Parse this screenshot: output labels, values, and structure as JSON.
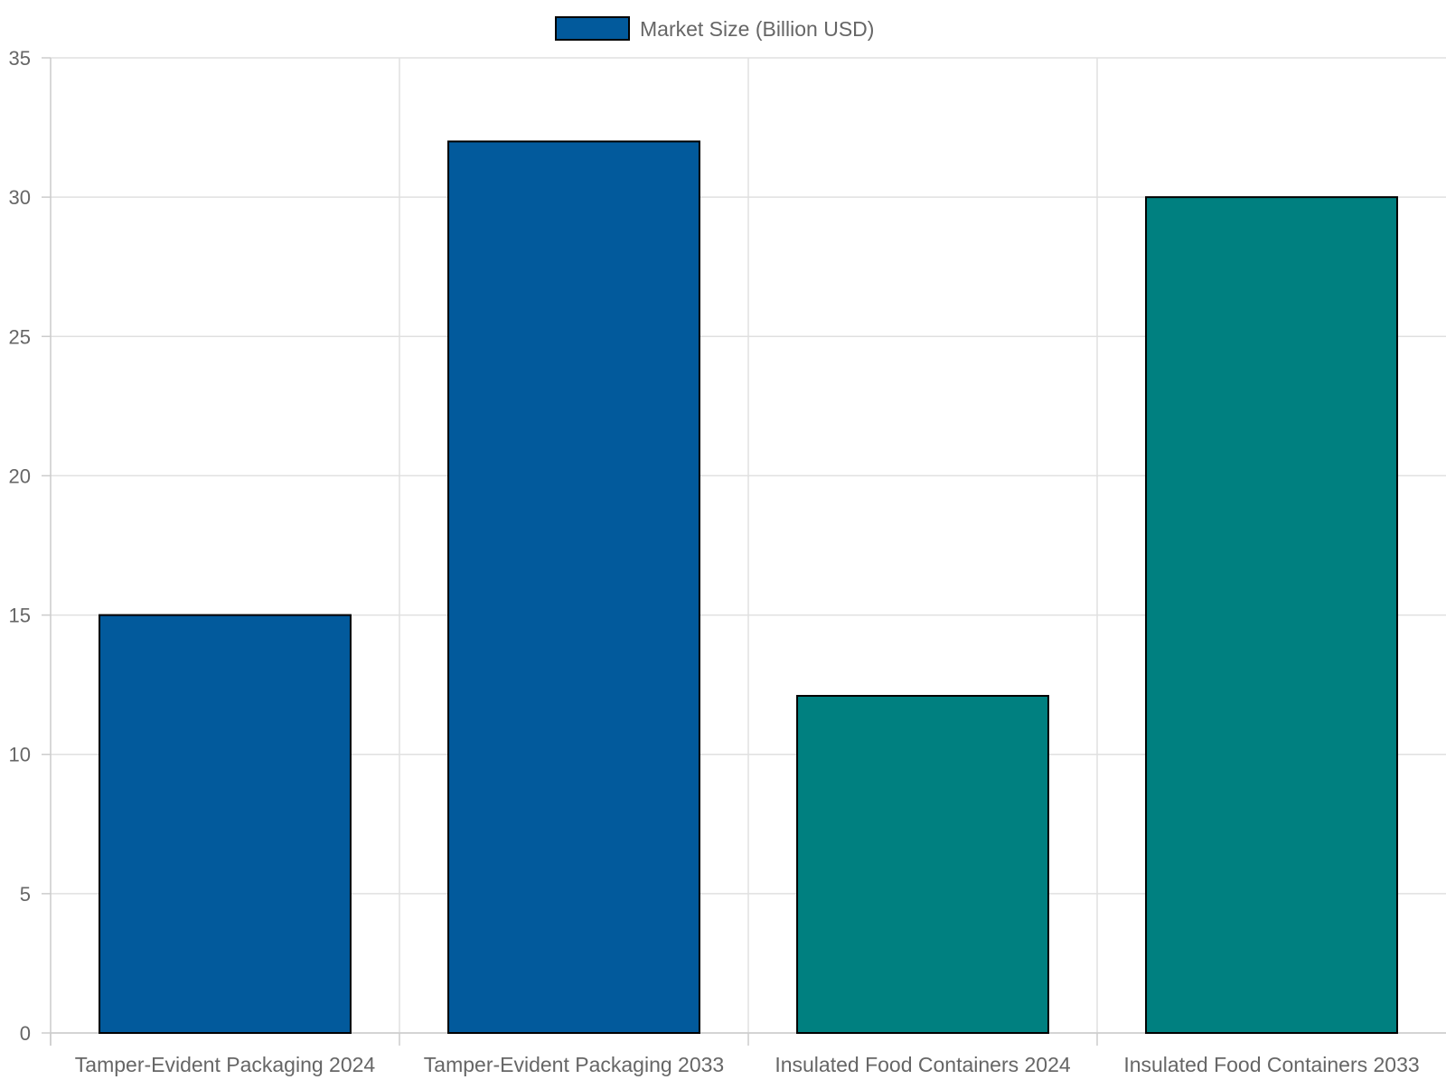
{
  "chart_data": {
    "type": "bar",
    "title": "",
    "xlabel": "",
    "ylabel": "",
    "categories": [
      "Tamper-Evident Packaging 2024",
      "Tamper-Evident Packaging 2033",
      "Insulated Food Containers 2024",
      "Insulated Food Containers 2033"
    ],
    "series": [
      {
        "name": "Market Size (Billion USD)",
        "values": [
          15,
          32,
          12.1,
          30
        ]
      }
    ],
    "bar_colors": [
      "#025A9C",
      "#025A9C",
      "#008080",
      "#008080"
    ],
    "legend_color": "#025A9C",
    "ylim": [
      0,
      35
    ],
    "yticks": [
      "0",
      "5",
      "10",
      "15",
      "20",
      "25",
      "30",
      "35"
    ],
    "grid": true,
    "legend_position": "top-center"
  }
}
